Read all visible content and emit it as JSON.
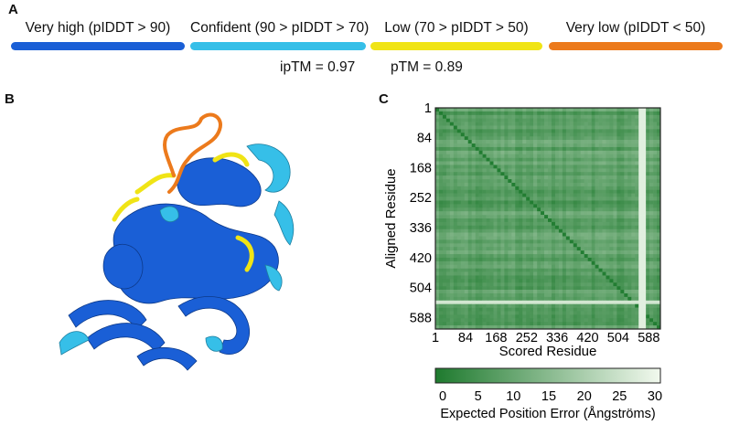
{
  "panels": {
    "a": "A",
    "b": "B",
    "c": "C"
  },
  "plddt_legend": [
    {
      "label": "Very high (pIDDT > 90)",
      "color": "#1a5fd6"
    },
    {
      "label": "Confident (90 > pIDDT > 70)",
      "color": "#36bfe8"
    },
    {
      "label": "Low (70 > pIDDT > 50)",
      "color": "#f0e415"
    },
    {
      "label": "Very low (pIDDT < 50)",
      "color": "#ec7a1c"
    }
  ],
  "metrics": {
    "iptm": "ipTM = 0.97",
    "ptm": "pTM = 0.89"
  },
  "colors": {
    "structure_high": "#1a5fd6",
    "structure_conf": "#36bfe8",
    "structure_low": "#f0e415",
    "structure_verylow": "#ec7a1c"
  },
  "chart_data": {
    "type": "heatmap",
    "title": "",
    "xlabel": "Scored Residue",
    "ylabel": "Aligned Residue",
    "x_ticks": [
      "1",
      "84",
      "168",
      "252",
      "336",
      "420",
      "504",
      "588"
    ],
    "y_ticks": [
      "1",
      "84",
      "168",
      "252",
      "336",
      "420",
      "504",
      "588"
    ],
    "x_range": [
      1,
      620
    ],
    "y_range": [
      1,
      620
    ],
    "colorbar": {
      "label": "Expected Position Error (Ångströms)",
      "ticks": [
        "0",
        "5",
        "10",
        "15",
        "20",
        "25",
        "30"
      ],
      "range": [
        0,
        30
      ],
      "color_min": "#1e7a2e",
      "color_max": "#f2f9ee"
    },
    "description_bands": {
      "low_error_base": 3,
      "high_error_rows": [
        540,
        551
      ],
      "high_error_cols": [
        565,
        576
      ]
    }
  }
}
